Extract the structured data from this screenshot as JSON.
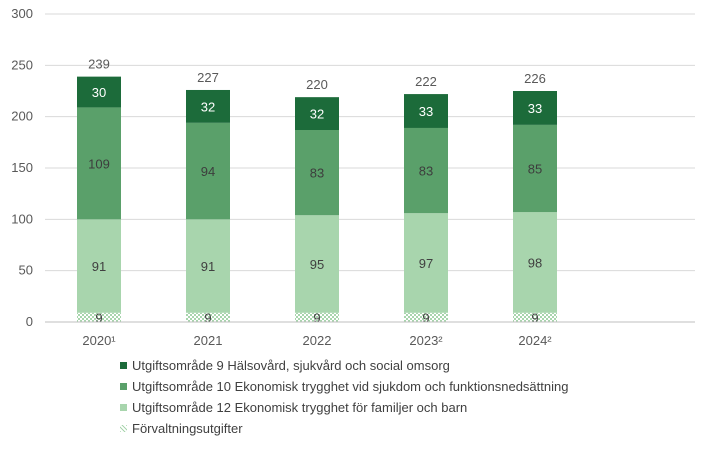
{
  "chart_data": {
    "type": "bar",
    "stacked": true,
    "categories": [
      "2020¹",
      "2021",
      "2022",
      "2023²",
      "2024²"
    ],
    "series": [
      {
        "name": "Förvaltningsutgifter",
        "values": [
          9,
          9,
          9,
          9,
          9
        ],
        "color": "#d6ead8",
        "pattern": "dotted"
      },
      {
        "name": "Utgiftsområde 12 Ekonomisk trygghet för familjer och barn",
        "values": [
          91,
          91,
          95,
          97,
          98
        ],
        "color": "#a8d5ad"
      },
      {
        "name": "Utgiftsområde 10 Ekonomisk trygghet vid sjukdom och funktionsnedsättning",
        "values": [
          109,
          94,
          83,
          83,
          85
        ],
        "color": "#5aa06a"
      },
      {
        "name": "Utgiftsområde 9 Hälsovård, sjukvård och social omsorg",
        "values": [
          30,
          32,
          32,
          33,
          33
        ],
        "color": "#1c6b3a"
      }
    ],
    "totals": [
      239,
      227,
      220,
      222,
      226
    ],
    "ylim": [
      0,
      300
    ],
    "yticks": [
      0,
      50,
      100,
      150,
      200,
      250,
      300
    ],
    "grid": true,
    "legend_position": "bottom-left",
    "title": "",
    "xlabel": "",
    "ylabel": ""
  },
  "legend": {
    "items": [
      {
        "label": "Utgiftsområde 9 Hälsovård, sjukvård och social omsorg",
        "color": "#1c6b3a",
        "pattern": "solid"
      },
      {
        "label": "Utgiftsområde 10 Ekonomisk trygghet vid sjukdom och funktionsnedsättning",
        "color": "#5aa06a",
        "pattern": "solid"
      },
      {
        "label": "Utgiftsområde 12 Ekonomisk trygghet för familjer och barn",
        "color": "#a8d5ad",
        "pattern": "solid"
      },
      {
        "label": "Förvaltningsutgifter",
        "color": "#d6ead8",
        "pattern": "dotted"
      }
    ]
  }
}
